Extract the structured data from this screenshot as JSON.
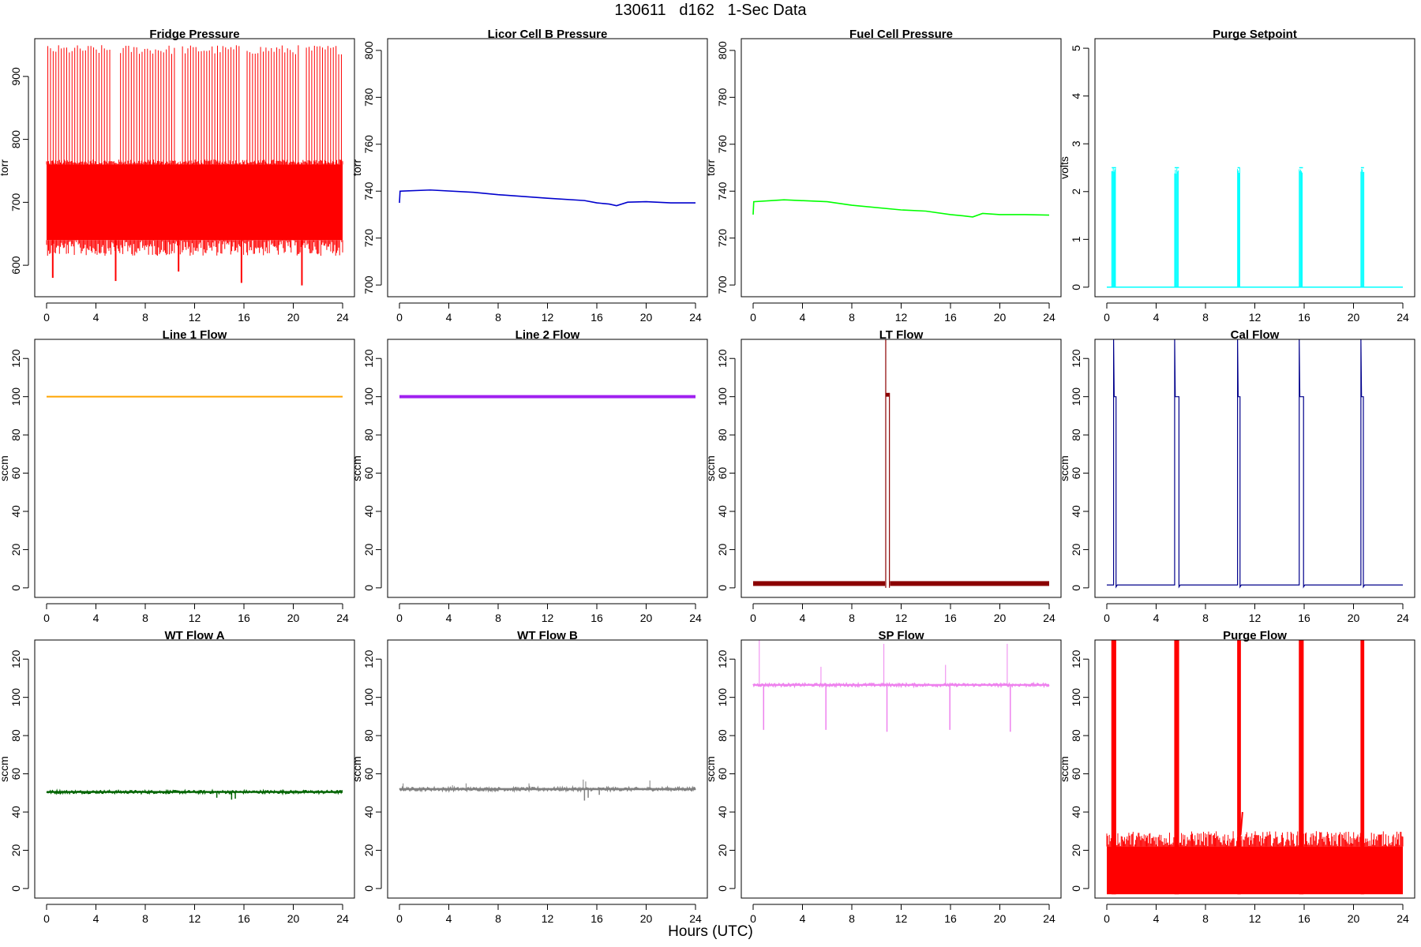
{
  "figure": {
    "title": "130611   d162   1-Sec Data",
    "xlabel": "Hours (UTC)"
  },
  "chart_data": [
    {
      "type": "line",
      "title": "Fridge Pressure",
      "ylabel": "torr",
      "color": "#ff0000",
      "xlim": [
        0,
        24
      ],
      "ylim": [
        550,
        960
      ],
      "yticks": [
        600,
        700,
        800,
        900
      ],
      "xticks": [
        0,
        4,
        8,
        12,
        16,
        20,
        24
      ],
      "pattern": "band",
      "band_low": 640,
      "band_high": 760,
      "spike_high": {
        "count": 110,
        "min": 935,
        "max": 950,
        "gaps": [
          [
            5.3,
            5.9
          ],
          [
            10.5,
            10.9
          ],
          [
            15.7,
            16.1
          ],
          [
            20.5,
            20.9
          ]
        ]
      },
      "dips": [
        {
          "x": 0.5,
          "y": 580
        },
        {
          "x": 5.6,
          "y": 575
        },
        {
          "x": 10.7,
          "y": 590
        },
        {
          "x": 15.8,
          "y": 572
        },
        {
          "x": 20.7,
          "y": 568
        }
      ],
      "x_range": [
        0,
        24
      ]
    },
    {
      "type": "line",
      "title": "Licor Cell B Pressure",
      "ylabel": "torr",
      "color": "#0000cd",
      "xlim": [
        0,
        24
      ],
      "ylim": [
        695,
        805
      ],
      "yticks": [
        700,
        720,
        740,
        760,
        780,
        800
      ],
      "xticks": [
        0,
        4,
        8,
        12,
        16,
        20,
        24
      ],
      "pattern": "line",
      "points": [
        [
          0,
          735
        ],
        [
          0.05,
          740
        ],
        [
          2.5,
          740.5
        ],
        [
          6,
          739.5
        ],
        [
          8,
          738.5
        ],
        [
          12,
          737
        ],
        [
          15,
          736
        ],
        [
          16,
          735
        ],
        [
          17,
          734.5
        ],
        [
          17.6,
          733.8
        ],
        [
          18.5,
          735.3
        ],
        [
          20,
          735.5
        ],
        [
          22,
          735
        ],
        [
          24,
          735
        ]
      ]
    },
    {
      "type": "line",
      "title": "Fuel Cell Pressure",
      "ylabel": "torr",
      "color": "#00ff00",
      "xlim": [
        0,
        24
      ],
      "ylim": [
        695,
        805
      ],
      "yticks": [
        700,
        720,
        740,
        760,
        780,
        800
      ],
      "xticks": [
        0,
        4,
        8,
        12,
        16,
        20,
        24
      ],
      "pattern": "line",
      "points": [
        [
          0,
          730
        ],
        [
          0.05,
          735.5
        ],
        [
          2.5,
          736.3
        ],
        [
          6,
          735.5
        ],
        [
          8,
          734
        ],
        [
          12,
          732
        ],
        [
          14,
          731.5
        ],
        [
          16,
          730
        ],
        [
          17,
          729.5
        ],
        [
          17.8,
          729
        ],
        [
          18.6,
          730.5
        ],
        [
          20,
          730
        ],
        [
          22,
          730
        ],
        [
          24,
          729.8
        ]
      ]
    },
    {
      "type": "line",
      "title": "Purge Setpoint",
      "ylabel": "volts",
      "color": "#00ffff",
      "xlim": [
        0,
        24
      ],
      "ylim": [
        -0.2,
        5.2
      ],
      "yticks": [
        0,
        1,
        2,
        3,
        4,
        5
      ],
      "xticks": [
        0,
        4,
        8,
        12,
        16,
        20,
        24
      ],
      "pattern": "pulses",
      "baseline": 0,
      "pulse_level": 2.5,
      "pulses": [
        [
          0.4,
          0.75
        ],
        [
          5.5,
          5.85
        ],
        [
          10.6,
          10.8
        ],
        [
          15.6,
          15.9
        ],
        [
          20.6,
          20.85
        ]
      ]
    },
    {
      "type": "line",
      "title": "Line 1 Flow",
      "ylabel": "sccm",
      "color": "#ffa500",
      "xlim": [
        0,
        24
      ],
      "ylim": [
        -5,
        130
      ],
      "yticks": [
        0,
        20,
        40,
        60,
        80,
        100,
        120
      ],
      "xticks": [
        0,
        4,
        8,
        12,
        16,
        20,
        24
      ],
      "pattern": "thick",
      "level": 100,
      "thickness": 1,
      "x_range": [
        0,
        24
      ]
    },
    {
      "type": "line",
      "title": "Line 2 Flow",
      "ylabel": "sccm",
      "color": "#a020f0",
      "xlim": [
        0,
        24
      ],
      "ylim": [
        -5,
        130
      ],
      "yticks": [
        0,
        20,
        40,
        60,
        80,
        100,
        120
      ],
      "xticks": [
        0,
        4,
        8,
        12,
        16,
        20,
        24
      ],
      "pattern": "thick",
      "level": 100,
      "thickness": 2,
      "x_range": [
        0,
        24
      ]
    },
    {
      "type": "line",
      "title": "LT Flow",
      "ylabel": "sccm",
      "color": "#8b0000",
      "xlim": [
        0,
        24
      ],
      "ylim": [
        -5,
        130
      ],
      "yticks": [
        0,
        20,
        40,
        60,
        80,
        100,
        120
      ],
      "xticks": [
        0,
        4,
        8,
        12,
        16,
        20,
        24
      ],
      "pattern": "lt",
      "baseline_segments": [
        [
          0,
          10.7,
          1,
          3.5
        ],
        [
          11.1,
          24,
          1,
          3.5
        ]
      ],
      "spike": {
        "x": 10.75,
        "top": 130
      },
      "plateau": {
        "x0": 10.75,
        "x1": 11.05,
        "y0": 100,
        "y1": 102
      }
    },
    {
      "type": "line",
      "title": "Cal Flow",
      "ylabel": "sccm",
      "color": "#00008b",
      "xlim": [
        0,
        24
      ],
      "ylim": [
        -5,
        130
      ],
      "yticks": [
        0,
        20,
        40,
        60,
        80,
        100,
        120
      ],
      "xticks": [
        0,
        4,
        8,
        12,
        16,
        20,
        24
      ],
      "pattern": "pulses_spike",
      "baseline": 1.5,
      "pulse_level": 100,
      "spike_top": 130,
      "pulses": [
        [
          0.55,
          0.75
        ],
        [
          5.5,
          5.85
        ],
        [
          10.6,
          10.8
        ],
        [
          15.6,
          15.95
        ],
        [
          20.6,
          20.8
        ]
      ]
    },
    {
      "type": "line",
      "title": "WT Flow A",
      "ylabel": "sccm",
      "color": "#006400",
      "xlim": [
        0,
        24
      ],
      "ylim": [
        -5,
        130
      ],
      "yticks": [
        0,
        20,
        40,
        60,
        80,
        100,
        120
      ],
      "xticks": [
        0,
        4,
        8,
        12,
        16,
        20,
        24
      ],
      "pattern": "noisy",
      "level": 50.5,
      "noise": 0.8,
      "dips": [
        {
          "x": 13.8,
          "y": 47.5
        },
        {
          "x": 15.0,
          "y": 46.5
        },
        {
          "x": 15.3,
          "y": 47
        }
      ],
      "x_range": [
        0,
        24
      ]
    },
    {
      "type": "line",
      "title": "WT Flow B",
      "ylabel": "sccm",
      "color": "#808080",
      "xlim": [
        0,
        24
      ],
      "ylim": [
        -5,
        130
      ],
      "yticks": [
        0,
        20,
        40,
        60,
        80,
        100,
        120
      ],
      "xticks": [
        0,
        4,
        8,
        12,
        16,
        20,
        24
      ],
      "pattern": "noisy",
      "level": 52,
      "noise": 0.9,
      "spikes": [
        {
          "x": 0.3,
          "y": 55
        },
        {
          "x": 4.3,
          "y": 54
        },
        {
          "x": 5.4,
          "y": 55
        },
        {
          "x": 10.5,
          "y": 55
        },
        {
          "x": 14.9,
          "y": 57
        },
        {
          "x": 15.1,
          "y": 56
        },
        {
          "x": 20.3,
          "y": 56.5
        }
      ],
      "dips": [
        {
          "x": 15.0,
          "y": 46
        },
        {
          "x": 15.3,
          "y": 47.5
        },
        {
          "x": 16.2,
          "y": 49
        }
      ],
      "x_range": [
        0,
        24
      ]
    },
    {
      "type": "line",
      "title": "SP Flow",
      "ylabel": "sccm",
      "color": "#ee82ee",
      "xlim": [
        0,
        24
      ],
      "ylim": [
        -5,
        130
      ],
      "yticks": [
        0,
        20,
        40,
        60,
        80,
        100,
        120
      ],
      "xticks": [
        0,
        4,
        8,
        12,
        16,
        20,
        24
      ],
      "pattern": "noisy",
      "level": 106.5,
      "noise": 0.8,
      "spikes": [
        {
          "x": 0.5,
          "y": 130
        },
        {
          "x": 5.5,
          "y": 116
        },
        {
          "x": 10.6,
          "y": 128
        },
        {
          "x": 15.6,
          "y": 117
        },
        {
          "x": 20.6,
          "y": 128
        }
      ],
      "dips": [
        {
          "x": 0.85,
          "y": 83
        },
        {
          "x": 5.9,
          "y": 83
        },
        {
          "x": 10.85,
          "y": 82
        },
        {
          "x": 15.95,
          "y": 83
        },
        {
          "x": 20.85,
          "y": 82
        }
      ],
      "x_range": [
        0,
        24
      ]
    },
    {
      "type": "line",
      "title": "Purge Flow",
      "ylabel": "sccm",
      "color": "#ff0000",
      "xlim": [
        0,
        24
      ],
      "ylim": [
        -5,
        130
      ],
      "yticks": [
        0,
        20,
        40,
        60,
        80,
        100,
        120
      ],
      "xticks": [
        0,
        4,
        8,
        12,
        16,
        20,
        24
      ],
      "pattern": "purge",
      "band_low": -3,
      "band_high": 28,
      "pulse_top": 130,
      "pulses": [
        [
          0.4,
          0.75
        ],
        [
          5.5,
          5.85
        ],
        [
          10.6,
          10.85
        ],
        [
          15.6,
          15.95
        ],
        [
          20.6,
          20.85
        ]
      ],
      "x_range": [
        0,
        24
      ]
    }
  ]
}
